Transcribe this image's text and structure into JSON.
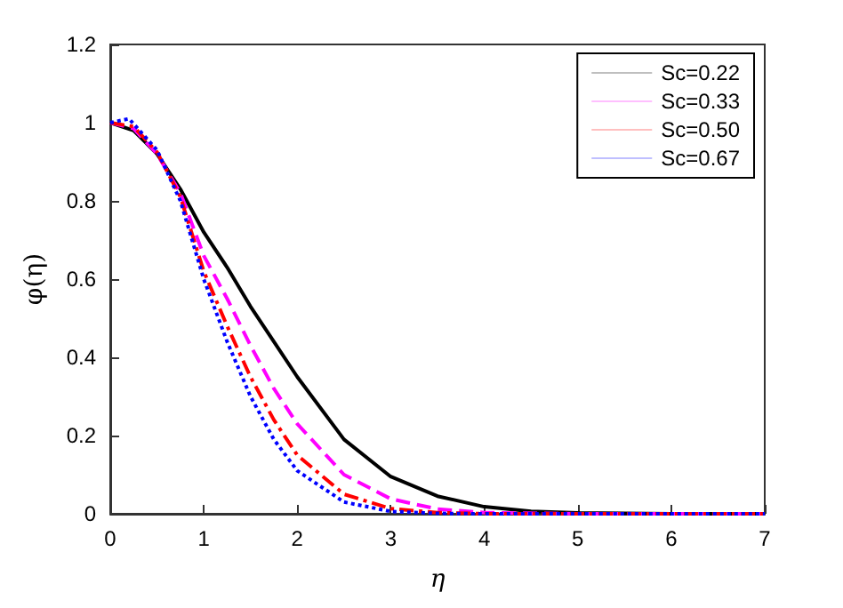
{
  "chart_data": {
    "type": "line",
    "xlabel": "η",
    "ylabel": "φ(η)",
    "xlim": [
      0,
      7
    ],
    "xticks": [
      0,
      1,
      2,
      3,
      4,
      5,
      6,
      7
    ],
    "ylim": [
      0,
      1.2
    ],
    "yticks": [
      0,
      0.2,
      0.4,
      0.6,
      0.8,
      1,
      1.2
    ],
    "grid": false,
    "legend": "top right",
    "marker": "none",
    "series": [
      {
        "name": "Sc=0.22",
        "color": "#000000",
        "line_style": "solid",
        "x": [
          0,
          0.25,
          0.5,
          0.75,
          1,
          1.25,
          1.5,
          1.75,
          2,
          2.5,
          3,
          3.5,
          4,
          4.5,
          5,
          6,
          7
        ],
        "values": [
          1,
          0.98,
          0.92,
          0.83,
          0.72,
          0.63,
          0.53,
          0.44,
          0.35,
          0.19,
          0.095,
          0.045,
          0.018,
          0.006,
          0.002,
          0,
          0
        ]
      },
      {
        "name": "Sc=0.33",
        "color": "#ff00ff",
        "line_style": "dashed",
        "x": [
          0,
          0.25,
          0.5,
          0.75,
          1,
          1.25,
          1.5,
          1.75,
          2,
          2.5,
          3,
          3.5,
          4,
          5,
          6,
          7
        ],
        "values": [
          1,
          0.985,
          0.92,
          0.82,
          0.66,
          0.55,
          0.43,
          0.32,
          0.23,
          0.1,
          0.038,
          0.012,
          0.003,
          0,
          0,
          0
        ]
      },
      {
        "name": "Sc=0.50",
        "color": "#ff0000",
        "line_style": "dashdot",
        "x": [
          0,
          0.25,
          0.5,
          0.75,
          1,
          1.25,
          1.5,
          1.75,
          2,
          2.5,
          3,
          3.5,
          4,
          5,
          6,
          7
        ],
        "values": [
          1,
          0.99,
          0.925,
          0.81,
          0.62,
          0.48,
          0.35,
          0.24,
          0.15,
          0.05,
          0.013,
          0.003,
          0,
          0,
          0,
          0
        ]
      },
      {
        "name": "Sc=0.67",
        "color": "#0000ff",
        "line_style": "dotted",
        "x": [
          0,
          0.2,
          0.5,
          0.75,
          1,
          1.25,
          1.5,
          1.75,
          2,
          2.5,
          3,
          3.5,
          4,
          5,
          6,
          7
        ],
        "values": [
          1,
          1.01,
          0.93,
          0.8,
          0.6,
          0.44,
          0.3,
          0.19,
          0.11,
          0.03,
          0.006,
          0.001,
          0,
          0,
          0,
          0
        ]
      }
    ]
  }
}
